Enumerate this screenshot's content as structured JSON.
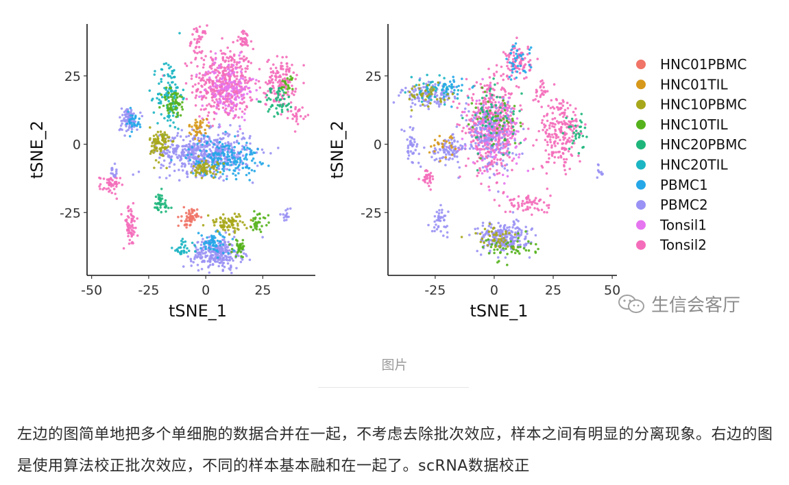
{
  "chart_data": [
    {
      "type": "scatter",
      "xlabel": "tSNE_1",
      "ylabel": "tSNE_2",
      "xticks": [
        -50,
        -25,
        0,
        25
      ],
      "yticks": [
        -25,
        0,
        25
      ],
      "xlim": [
        -52,
        48
      ],
      "ylim": [
        -48,
        44
      ],
      "clusters": [
        {
          "label": "Tonsil2",
          "x": 8,
          "y": 22,
          "spread": [
            12,
            12
          ],
          "n": 420
        },
        {
          "label": "Tonsil2",
          "x": -3,
          "y": 38,
          "spread": [
            3,
            5
          ],
          "n": 40
        },
        {
          "label": "Tonsil2",
          "x": 17,
          "y": 38,
          "spread": [
            3,
            3
          ],
          "n": 30
        },
        {
          "label": "Tonsil2",
          "x": 33,
          "y": 23,
          "spread": [
            6,
            8
          ],
          "n": 130
        },
        {
          "label": "Tonsil2",
          "x": 40,
          "y": 11,
          "spread": [
            3,
            3
          ],
          "n": 25
        },
        {
          "label": "Tonsil2",
          "x": -42,
          "y": -15,
          "spread": [
            4,
            3
          ],
          "n": 45
        },
        {
          "label": "Tonsil2",
          "x": -33,
          "y": -30,
          "spread": [
            3,
            7
          ],
          "n": 60
        },
        {
          "label": "Tonsil1",
          "x": 10,
          "y": 20,
          "spread": [
            10,
            10
          ],
          "n": 140
        },
        {
          "label": "HNC20TIL",
          "x": -16,
          "y": 18,
          "spread": [
            5,
            12
          ],
          "n": 110
        },
        {
          "label": "HNC10TIL",
          "x": -14,
          "y": 15,
          "spread": [
            5,
            5
          ],
          "n": 60
        },
        {
          "label": "HNC20PBMC",
          "x": 32,
          "y": 16,
          "spread": [
            6,
            5
          ],
          "n": 50
        },
        {
          "label": "HNC10TIL",
          "x": 36,
          "y": 22,
          "spread": [
            3,
            3
          ],
          "n": 20
        },
        {
          "label": "PBMC2",
          "x": 0,
          "y": -3,
          "spread": [
            18,
            7
          ],
          "n": 520
        },
        {
          "label": "PBMC1",
          "x": 8,
          "y": -5,
          "spread": [
            14,
            6
          ],
          "n": 180
        },
        {
          "label": "HNC10PBMC",
          "x": -20,
          "y": 0,
          "spread": [
            4,
            6
          ],
          "n": 90
        },
        {
          "label": "HNC10PBMC",
          "x": 0,
          "y": -9,
          "spread": [
            5,
            3
          ],
          "n": 60
        },
        {
          "label": "HNC01TIL",
          "x": -3,
          "y": 6,
          "spread": [
            4,
            3
          ],
          "n": 40
        },
        {
          "label": "PBMC2",
          "x": -34,
          "y": 9,
          "spread": [
            4,
            4
          ],
          "n": 80
        },
        {
          "label": "PBMC1",
          "x": -32,
          "y": 8,
          "spread": [
            4,
            4
          ],
          "n": 30
        },
        {
          "label": "PBMC2",
          "x": 5,
          "y": -40,
          "spread": [
            10,
            5
          ],
          "n": 260
        },
        {
          "label": "PBMC1",
          "x": 4,
          "y": -36,
          "spread": [
            6,
            4
          ],
          "n": 60
        },
        {
          "label": "HNC01PBMC",
          "x": -7,
          "y": -27,
          "spread": [
            3,
            3
          ],
          "n": 55
        },
        {
          "label": "HNC10PBMC",
          "x": 10,
          "y": -29,
          "spread": [
            8,
            3
          ],
          "n": 80
        },
        {
          "label": "HNC10TIL",
          "x": 23,
          "y": -28,
          "spread": [
            4,
            3
          ],
          "n": 30
        },
        {
          "label": "HNC10TIL",
          "x": 15,
          "y": -38,
          "spread": [
            3,
            3
          ],
          "n": 35
        },
        {
          "label": "HNC20PBMC",
          "x": -20,
          "y": -22,
          "spread": [
            4,
            4
          ],
          "n": 40
        },
        {
          "label": "HNC20TIL",
          "x": -10,
          "y": -38,
          "spread": [
            4,
            3
          ],
          "n": 30
        },
        {
          "label": "PBMC2",
          "x": -40,
          "y": -10,
          "spread": [
            2,
            3
          ],
          "n": 15
        },
        {
          "label": "PBMC2",
          "x": 35,
          "y": -26,
          "spread": [
            2,
            2
          ],
          "n": 15
        }
      ]
    },
    {
      "type": "scatter",
      "xlabel": "tSNE_1",
      "ylabel": "tSNE_2",
      "xticks": [
        -25,
        0,
        25,
        50
      ],
      "yticks": [
        -25,
        0,
        25
      ],
      "xlim": [
        -45,
        52
      ],
      "ylim": [
        -48,
        44
      ],
      "clusters": [
        {
          "label": "Tonsil2",
          "x": -1,
          "y": 6,
          "spread": [
            10,
            14
          ],
          "n": 480
        },
        {
          "label": "Tonsil1",
          "x": 0,
          "y": 4,
          "spread": [
            10,
            12
          ],
          "n": 140
        },
        {
          "label": "PBMC2",
          "x": -2,
          "y": 4,
          "spread": [
            10,
            12
          ],
          "n": 160
        },
        {
          "label": "HNC20PBMC",
          "x": 0,
          "y": 8,
          "spread": [
            10,
            12
          ],
          "n": 60
        },
        {
          "label": "HNC10TIL",
          "x": 2,
          "y": 10,
          "spread": [
            10,
            10
          ],
          "n": 40
        },
        {
          "label": "Tonsil2",
          "x": 10,
          "y": 30,
          "spread": [
            5,
            6
          ],
          "n": 90
        },
        {
          "label": "PBMC1",
          "x": 10,
          "y": 30,
          "spread": [
            5,
            6
          ],
          "n": 40
        },
        {
          "label": "PBMC2",
          "x": -28,
          "y": 18,
          "spread": [
            10,
            4
          ],
          "n": 120
        },
        {
          "label": "HNC20TIL",
          "x": -25,
          "y": 20,
          "spread": [
            10,
            4
          ],
          "n": 50
        },
        {
          "label": "PBMC1",
          "x": -20,
          "y": 20,
          "spread": [
            6,
            4
          ],
          "n": 30
        },
        {
          "label": "HNC10PBMC",
          "x": -28,
          "y": 18,
          "spread": [
            10,
            4
          ],
          "n": 40
        },
        {
          "label": "Tonsil2",
          "x": 28,
          "y": 4,
          "spread": [
            8,
            12
          ],
          "n": 200
        },
        {
          "label": "HNC20PBMC",
          "x": 35,
          "y": 5,
          "spread": [
            4,
            6
          ],
          "n": 30
        },
        {
          "label": "PBMC2",
          "x": -35,
          "y": 0,
          "spread": [
            3,
            6
          ],
          "n": 40
        },
        {
          "label": "PBMC2",
          "x": -20,
          "y": -2,
          "spread": [
            6,
            4
          ],
          "n": 80
        },
        {
          "label": "HNC01TIL",
          "x": -20,
          "y": 0,
          "spread": [
            6,
            4
          ],
          "n": 25
        },
        {
          "label": "Tonsil2",
          "x": -28,
          "y": -12,
          "spread": [
            3,
            3
          ],
          "n": 30
        },
        {
          "label": "PBMC2",
          "x": -23,
          "y": -28,
          "spread": [
            3,
            4
          ],
          "n": 40
        },
        {
          "label": "PBMC2",
          "x": 4,
          "y": -34,
          "spread": [
            10,
            5
          ],
          "n": 220
        },
        {
          "label": "HNC10TIL",
          "x": 6,
          "y": -38,
          "spread": [
            10,
            4
          ],
          "n": 50
        },
        {
          "label": "HNC10PBMC",
          "x": 0,
          "y": -34,
          "spread": [
            8,
            4
          ],
          "n": 40
        },
        {
          "label": "Tonsil2",
          "x": 15,
          "y": -22,
          "spread": [
            8,
            4
          ],
          "n": 60
        },
        {
          "label": "PBMC2",
          "x": 45,
          "y": -10,
          "spread": [
            1,
            2
          ],
          "n": 10
        },
        {
          "label": "Tonsil2",
          "x": 20,
          "y": 20,
          "spread": [
            3,
            4
          ],
          "n": 25
        }
      ]
    }
  ],
  "legend": [
    {
      "label": "HNC01PBMC",
      "color": "#F07467"
    },
    {
      "label": "HNC01TIL",
      "color": "#D7991B"
    },
    {
      "label": "HNC10PBMC",
      "color": "#A7A71B"
    },
    {
      "label": "HNC10TIL",
      "color": "#55B21C"
    },
    {
      "label": "HNC20PBMC",
      "color": "#1FB67C"
    },
    {
      "label": "HNC20TIL",
      "color": "#1CB5C3"
    },
    {
      "label": "PBMC1",
      "color": "#25A7E8"
    },
    {
      "label": "PBMC2",
      "color": "#9A92F4"
    },
    {
      "label": "Tonsil1",
      "color": "#E675F0"
    },
    {
      "label": "Tonsil2",
      "color": "#F46DBA"
    }
  ],
  "watermark": "生信会客厅",
  "caption": "图片",
  "paragraph": "左边的图简单地把多个单细胞的数据合并在一起，不考虑去除批次效应，样本之间有明显的分离现象。右边的图是使用算法校正批次效应，不同的样本基本融和在一起了。scRNA数据校正"
}
